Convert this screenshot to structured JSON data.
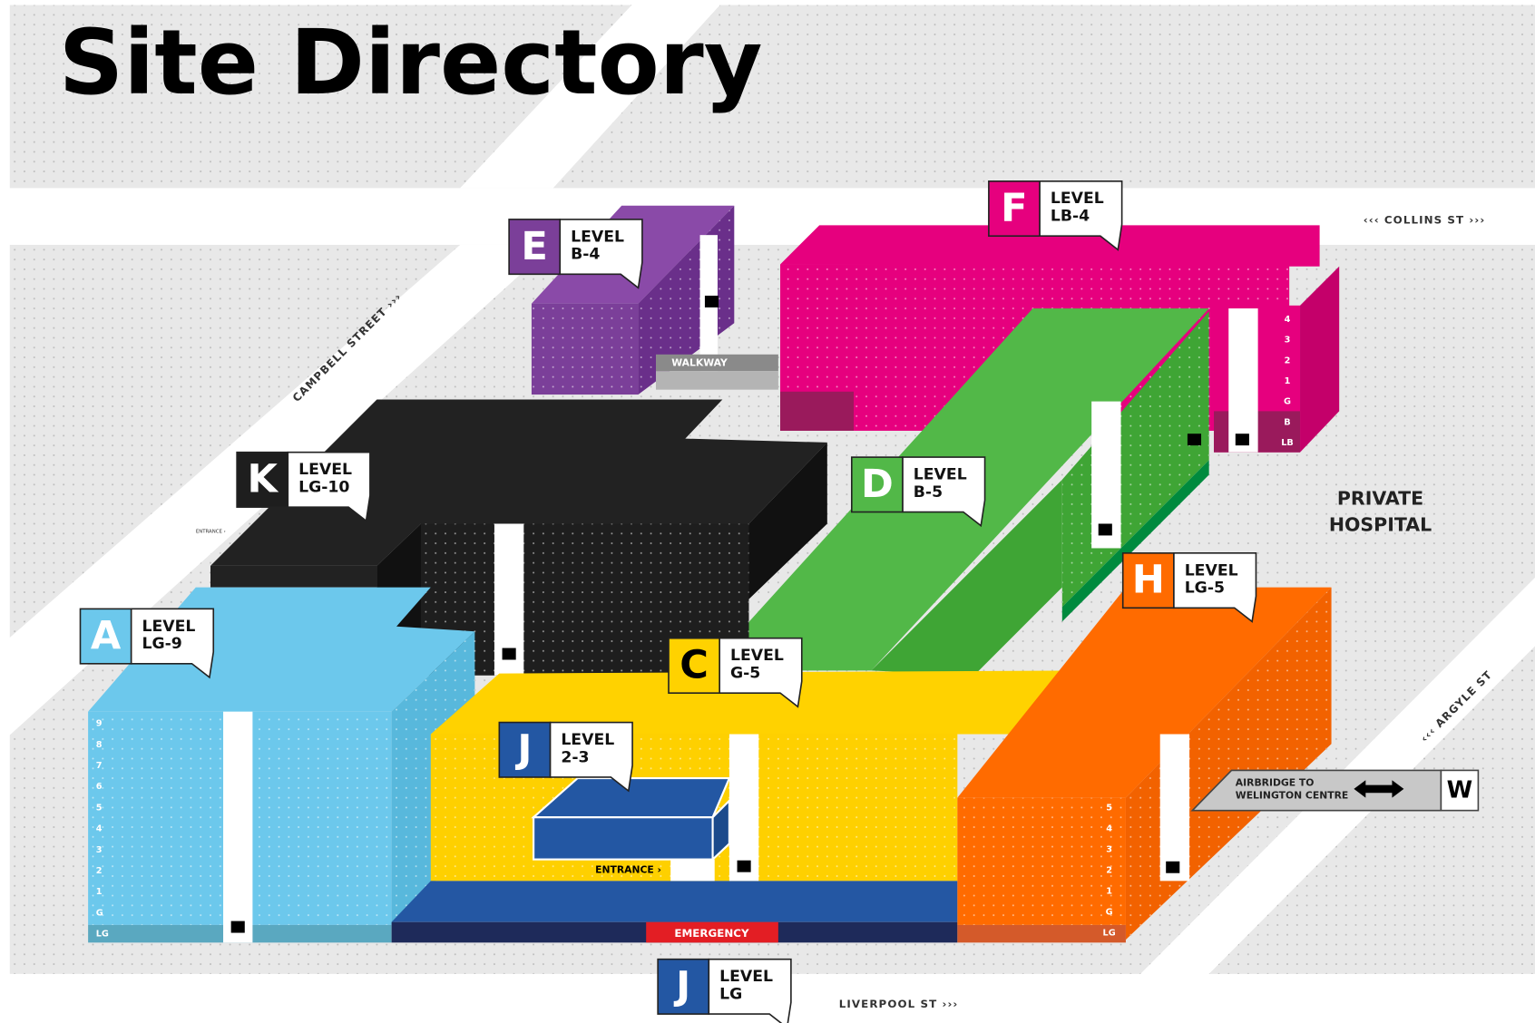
{
  "title": "Site Directory",
  "buildings": [
    {
      "letter": "E",
      "level_title": "LEVEL",
      "level": "B-4",
      "color": "#7b3f99"
    },
    {
      "letter": "F",
      "level_title": "LEVEL",
      "level": "LB-4",
      "color": "#e6007e"
    },
    {
      "letter": "K",
      "level_title": "LEVEL",
      "level": "LG-10",
      "color": "#1e1e1e"
    },
    {
      "letter": "D",
      "level_title": "LEVEL",
      "level": "B-5",
      "color": "#52b848"
    },
    {
      "letter": "A",
      "level_title": "LEVEL",
      "level": "LG-9",
      "color": "#6cc8ec"
    },
    {
      "letter": "C",
      "level_title": "LEVEL",
      "level": "G-5",
      "color": "#ffd200"
    },
    {
      "letter": "J",
      "level_title": "LEVEL",
      "level": "2-3",
      "color": "#2357a3"
    },
    {
      "letter": "H",
      "level_title": "LEVEL",
      "level": "LG-5",
      "color": "#ff6b00"
    },
    {
      "letter": "J",
      "level_title": "LEVEL",
      "level": "LG",
      "color": "#2357a3"
    }
  ],
  "streets": {
    "collins": "‹‹‹ COLLINS ST ›››",
    "campbell": "CAMPBELL STREET ›››",
    "argyle": "‹‹‹ ARGYLE ST",
    "liverpool": "LIVERPOOL ST ›››"
  },
  "labels": {
    "walkway": "WALKWAY",
    "entrance_c": "ENTRANCE ›",
    "entrance_k": "ENTRANCE ›",
    "emergency": "EMERGENCY",
    "private_hospital": [
      "PRIVATE",
      "HOSPITAL"
    ],
    "airbridge": [
      "AIRBRIDGE TO",
      "WELINGTON CENTRE"
    ],
    "airbridge_letter": "W"
  },
  "floors": {
    "A": [
      "9",
      "8",
      "7",
      "6",
      "5",
      "4",
      "3",
      "2",
      "1",
      "G",
      "LG"
    ],
    "F": [
      "4",
      "3",
      "2",
      "1",
      "G",
      "B",
      "LB"
    ],
    "H": [
      "5",
      "4",
      "3",
      "2",
      "1",
      "G",
      "LG"
    ]
  }
}
